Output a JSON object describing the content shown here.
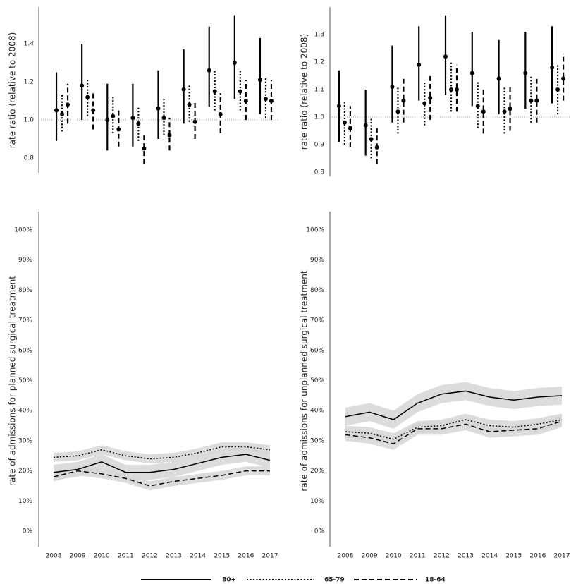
{
  "chart_data": [
    {
      "type": "errorbar",
      "y_label": "rate ratio (relative to 2008)",
      "categories": [
        null,
        null,
        null,
        null,
        null,
        null,
        null,
        null,
        null
      ],
      "ylim": [
        0.75,
        1.55
      ],
      "yticks": [
        0.8,
        {
          "value": 1,
          "label": "1.0"
        },
        1.2,
        1.4
      ],
      "reference_line": 1,
      "series": [
        {
          "dash": "solid",
          "color": "#000000",
          "values": [
            1.05,
            1.18,
            1.0,
            1.01,
            1.06,
            1.16,
            1.26,
            1.3,
            1.21
          ],
          "lower": [
            0.89,
            1.0,
            0.84,
            0.86,
            0.9,
            0.98,
            1.07,
            1.11,
            1.03
          ],
          "upper": [
            1.25,
            1.4,
            1.19,
            1.19,
            1.26,
            1.37,
            1.49,
            1.55,
            1.43
          ]
        },
        {
          "dash": "dotted",
          "color": "#000000",
          "values": [
            1.03,
            1.12,
            1.02,
            0.98,
            1.01,
            1.08,
            1.15,
            1.15,
            1.11
          ],
          "lower": [
            0.94,
            1.02,
            0.93,
            0.89,
            0.92,
            0.99,
            1.05,
            1.05,
            1.01
          ],
          "upper": [
            1.14,
            1.22,
            1.13,
            1.07,
            1.11,
            1.18,
            1.26,
            1.26,
            1.22
          ]
        },
        {
          "dash": "dashed",
          "color": "#000000",
          "values": [
            1.08,
            1.05,
            0.95,
            0.85,
            0.92,
            0.99,
            1.03,
            1.1,
            1.1
          ],
          "lower": [
            0.98,
            0.95,
            0.86,
            0.77,
            0.84,
            0.9,
            0.93,
            1.0,
            1.0
          ],
          "upper": [
            1.19,
            1.15,
            1.05,
            0.93,
            1.01,
            1.1,
            1.14,
            1.21,
            1.21
          ]
        }
      ]
    },
    {
      "type": "errorbar",
      "y_label": "rate ratio (relative to 2008)",
      "categories": [
        null,
        null,
        null,
        null,
        null,
        null,
        null,
        null,
        null
      ],
      "ylim": [
        0.8,
        1.37
      ],
      "yticks": [
        0.8,
        0.9,
        {
          "value": 1,
          "label": "1.0"
        },
        1.1,
        1.2,
        1.3
      ],
      "reference_line": 1,
      "series": [
        {
          "dash": "solid",
          "color": "#000000",
          "values": [
            1.04,
            0.97,
            1.11,
            1.19,
            1.22,
            1.16,
            1.14,
            1.16,
            1.18
          ],
          "lower": [
            0.91,
            0.86,
            0.98,
            1.06,
            1.08,
            1.04,
            1.01,
            1.03,
            1.05
          ],
          "upper": [
            1.17,
            1.1,
            1.26,
            1.33,
            1.37,
            1.31,
            1.28,
            1.31,
            1.33
          ]
        },
        {
          "dash": "dotted",
          "color": "#000000",
          "values": [
            0.98,
            0.92,
            1.02,
            1.05,
            1.1,
            1.04,
            1.02,
            1.06,
            1.1
          ],
          "lower": [
            0.9,
            0.85,
            0.94,
            0.97,
            1.02,
            0.96,
            0.94,
            0.98,
            1.01
          ],
          "upper": [
            1.06,
            1.0,
            1.11,
            1.13,
            1.2,
            1.13,
            1.11,
            1.15,
            1.19
          ]
        },
        {
          "dash": "dashed",
          "color": "#000000",
          "values": [
            0.96,
            0.89,
            1.06,
            1.07,
            1.1,
            1.02,
            1.03,
            1.06,
            1.14
          ],
          "lower": [
            0.89,
            0.83,
            0.98,
            0.99,
            1.02,
            0.94,
            0.95,
            0.98,
            1.06
          ],
          "upper": [
            1.04,
            0.96,
            1.14,
            1.15,
            1.19,
            1.1,
            1.11,
            1.14,
            1.23
          ]
        }
      ]
    },
    {
      "type": "line",
      "y_label": "rate of admissions for planned surgical treatment",
      "categories": [
        "2008",
        "2009",
        "2010",
        "2011",
        "2012",
        "2013",
        "2014",
        "2015",
        "2016",
        "2017"
      ],
      "ylim": [
        0,
        100
      ],
      "yticks": [
        {
          "value": 0,
          "label": "0%"
        },
        {
          "value": 10,
          "label": "10%"
        },
        {
          "value": 20,
          "label": "20%"
        },
        {
          "value": 30,
          "label": "30%"
        },
        {
          "value": 40,
          "label": "40%"
        },
        {
          "value": 50,
          "label": "50%"
        },
        {
          "value": 60,
          "label": "60%"
        },
        {
          "value": 70,
          "label": "70%"
        },
        {
          "value": 80,
          "label": "80%"
        },
        {
          "value": 90,
          "label": "90%"
        },
        {
          "value": 100,
          "label": "100%"
        }
      ],
      "band_color": "#d6d6d6",
      "series": [
        {
          "name": "80+",
          "dash": "solid",
          "color": "#000000",
          "values": [
            19.5,
            20.5,
            23,
            19.5,
            19.5,
            20.5,
            22.5,
            24.5,
            25.5,
            23.5
          ],
          "lower": [
            17,
            18,
            20.5,
            17,
            17,
            18,
            20,
            22,
            23,
            21
          ],
          "upper": [
            22,
            23,
            25.5,
            22,
            22,
            23,
            25,
            27,
            28,
            26
          ]
        },
        {
          "name": "65-79",
          "dash": "dotted",
          "color": "#000000",
          "values": [
            24.5,
            25,
            27,
            25,
            24,
            24.5,
            26,
            28,
            28,
            27
          ],
          "lower": [
            23,
            23.5,
            25.5,
            23.5,
            22.5,
            23,
            24.5,
            26.5,
            26.5,
            25.5
          ],
          "upper": [
            26,
            26.5,
            28.5,
            26.5,
            25.5,
            26,
            27.5,
            29.5,
            29.5,
            28.5
          ]
        },
        {
          "name": "18-64",
          "dash": "dashed",
          "color": "#000000",
          "values": [
            18,
            20,
            19,
            17.5,
            15,
            16.5,
            17.5,
            18.5,
            20,
            20
          ],
          "lower": [
            16.5,
            18.5,
            17.5,
            16,
            13.5,
            15,
            16,
            17,
            18.5,
            18.5
          ],
          "upper": [
            19.5,
            21.5,
            20.5,
            19,
            16.5,
            18,
            19,
            20,
            21.5,
            21.5
          ]
        }
      ]
    },
    {
      "type": "line",
      "y_label": "rate of admissions for unplanned surgical treatment",
      "categories": [
        "2008",
        "2009",
        "2010",
        "2011",
        "2012",
        "2013",
        "2014",
        "2015",
        "2016",
        "2017"
      ],
      "ylim": [
        0,
        100
      ],
      "yticks": [
        {
          "value": 0,
          "label": "0%"
        },
        {
          "value": 10,
          "label": "10%"
        },
        {
          "value": 20,
          "label": "20%"
        },
        {
          "value": 30,
          "label": "30%"
        },
        {
          "value": 40,
          "label": "40%"
        },
        {
          "value": 50,
          "label": "50%"
        },
        {
          "value": 60,
          "label": "60%"
        },
        {
          "value": 70,
          "label": "70%"
        },
        {
          "value": 80,
          "label": "80%"
        },
        {
          "value": 90,
          "label": "90%"
        },
        {
          "value": 100,
          "label": "100%"
        }
      ],
      "band_color": "#d6d6d6",
      "series": [
        {
          "dash": "solid",
          "color": "#000000",
          "values": [
            38,
            39.5,
            37,
            42.5,
            45.5,
            46.5,
            44.5,
            43.5,
            44.5,
            45
          ],
          "lower": [
            35,
            36.5,
            34,
            39.5,
            42.5,
            43.5,
            41.5,
            40.5,
            41.5,
            42
          ],
          "upper": [
            41,
            42.5,
            40,
            45.5,
            48.5,
            49.5,
            47.5,
            46.5,
            47.5,
            48
          ]
        },
        {
          "dash": "dotted",
          "color": "#000000",
          "values": [
            33,
            32.5,
            30.5,
            34.5,
            35,
            37,
            35,
            34.5,
            35.5,
            37
          ],
          "lower": [
            31,
            30.5,
            28.5,
            32.5,
            33,
            35,
            33,
            32.5,
            33.5,
            35
          ],
          "upper": [
            35,
            34.5,
            32.5,
            36.5,
            37,
            39,
            37,
            36.5,
            37.5,
            39
          ]
        },
        {
          "dash": "dashed",
          "color": "#000000",
          "values": [
            32,
            31,
            29,
            34,
            34,
            35.5,
            33,
            33.5,
            34,
            36.5
          ],
          "lower": [
            30,
            29,
            27,
            32,
            32,
            33.5,
            31,
            31.5,
            32,
            34.5
          ],
          "upper": [
            34,
            33,
            31,
            36,
            36,
            37.5,
            35,
            35.5,
            36,
            38.5
          ]
        }
      ]
    }
  ]
}
